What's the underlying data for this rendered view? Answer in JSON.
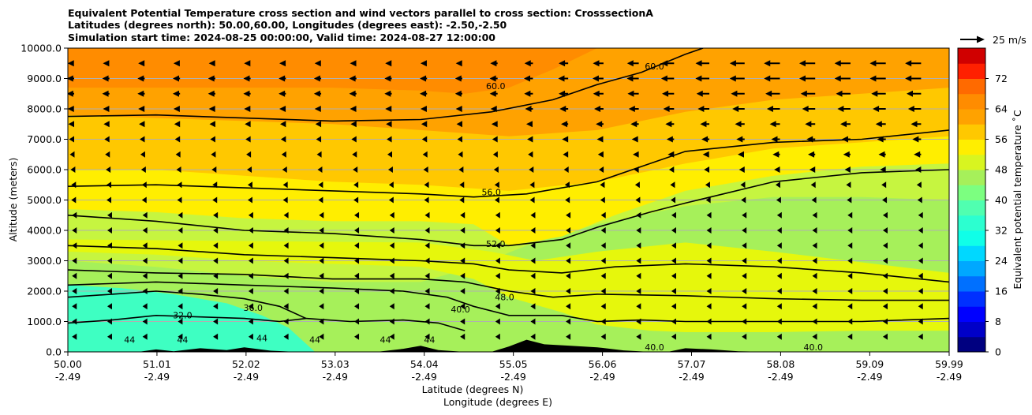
{
  "chart_data": {
    "type": "heatmap",
    "subtype": "cross-section contour with wind vectors",
    "title_lines": [
      "Equivalent Potential Temperature cross section and wind vectors parallel to cross section: CrosssectionA",
      "Latitudes (degrees north): 50.00,60.00, Longitudes (degrees east): -2.50,-2.50",
      "Simulation start time: 2024-08-25 00:00:00, Valid time: 2024-08-27 12:00:00"
    ],
    "xlabel_1": "Latitude (degrees N)",
    "xlabel_2": "Longitude (degrees E)",
    "ylabel": "Altitude (meters)",
    "x_range": [
      50.0,
      59.99
    ],
    "y_range": [
      0,
      10000
    ],
    "x_ticks": [
      {
        "lat": "50.00",
        "lon": "-2.49",
        "value": 50.0
      },
      {
        "lat": "51.01",
        "lon": "-2.49",
        "value": 51.01
      },
      {
        "lat": "52.02",
        "lon": "-2.49",
        "value": 52.02
      },
      {
        "lat": "53.03",
        "lon": "-2.49",
        "value": 53.03
      },
      {
        "lat": "54.04",
        "lon": "-2.49",
        "value": 54.04
      },
      {
        "lat": "55.05",
        "lon": "-2.49",
        "value": 55.05
      },
      {
        "lat": "56.06",
        "lon": "-2.49",
        "value": 56.06
      },
      {
        "lat": "57.07",
        "lon": "-2.49",
        "value": 57.07
      },
      {
        "lat": "58.08",
        "lon": "-2.49",
        "value": 58.08
      },
      {
        "lat": "59.09",
        "lon": "-2.49",
        "value": 59.09
      },
      {
        "lat": "59.99",
        "lon": "-2.49",
        "value": 59.99
      }
    ],
    "y_ticks": [
      {
        "label": "0.0",
        "value": 0
      },
      {
        "label": "1000.0",
        "value": 1000
      },
      {
        "label": "2000.0",
        "value": 2000
      },
      {
        "label": "3000.0",
        "value": 3000
      },
      {
        "label": "4000.0",
        "value": 4000
      },
      {
        "label": "5000.0",
        "value": 5000
      },
      {
        "label": "6000.0",
        "value": 6000
      },
      {
        "label": "7000.0",
        "value": 7000
      },
      {
        "label": "8000.0",
        "value": 8000
      },
      {
        "label": "9000.0",
        "value": 9000
      },
      {
        "label": "10000.0",
        "value": 10000
      }
    ],
    "grid": true,
    "colorbar": {
      "label": "Equivalent potential temperature ˚C",
      "range": [
        0,
        80
      ],
      "ticks": [
        "0",
        "8",
        "16",
        "24",
        "32",
        "40",
        "48",
        "56",
        "64",
        "72"
      ],
      "tick_values": [
        0,
        8,
        16,
        24,
        32,
        40,
        48,
        56,
        64,
        72
      ]
    },
    "wind_key": {
      "label": "25 m/s",
      "speed": 25
    },
    "fill_bands": [
      {
        "theta": 38,
        "color": "#a6f05a",
        "heights": [
          [
            50.0,
            1300
          ],
          [
            51.0,
            1200
          ],
          [
            52.0,
            1100
          ],
          [
            53.0,
            1050
          ],
          [
            54.0,
            1000
          ],
          [
            55.0,
            950
          ],
          [
            56.0,
            850
          ],
          [
            57.0,
            800
          ],
          [
            58.0,
            700
          ],
          [
            59.0,
            650
          ],
          [
            59.99,
            600
          ]
        ]
      },
      {
        "theta": 34,
        "color": "#3effc2",
        "heights": [
          [
            50.0,
            2200
          ],
          [
            50.6,
            2100
          ],
          [
            51.2,
            1900
          ],
          [
            51.8,
            1600
          ],
          [
            52.2,
            1200
          ],
          [
            52.5,
            800
          ],
          [
            52.8,
            0
          ]
        ]
      },
      {
        "theta": 45,
        "color": "#c6f540",
        "heights": [
          [
            50.0,
            3000
          ],
          [
            51.0,
            2800
          ],
          [
            52.0,
            2500
          ],
          [
            53.0,
            2300
          ],
          [
            54.0,
            2300
          ],
          [
            54.6,
            2800
          ],
          [
            55.2,
            3500
          ],
          [
            56.0,
            4200
          ],
          [
            57.0,
            4800
          ],
          [
            58.0,
            5100
          ],
          [
            59.0,
            5100
          ],
          [
            59.99,
            5000
          ]
        ]
      },
      {
        "theta": 48,
        "color": "#e6f70c",
        "heights": [
          [
            50.0,
            3300
          ],
          [
            51.0,
            3200
          ],
          [
            52.0,
            3000
          ],
          [
            53.0,
            2900
          ],
          [
            54.0,
            2800
          ],
          [
            54.6,
            2400
          ],
          [
            55.0,
            1800
          ],
          [
            55.6,
            1300
          ],
          [
            56.0,
            900
          ],
          [
            56.6,
            700
          ],
          [
            57.0,
            650
          ],
          [
            58.0,
            650
          ],
          [
            59.0,
            700
          ],
          [
            59.99,
            700
          ]
        ]
      },
      {
        "theta": 52,
        "color": "#ffee00",
        "heights": [
          [
            50.0,
            4700
          ],
          [
            51.0,
            4600
          ],
          [
            52.0,
            4400
          ],
          [
            53.0,
            4300
          ],
          [
            54.0,
            4300
          ],
          [
            54.6,
            4200
          ],
          [
            55.0,
            3500
          ],
          [
            55.6,
            3800
          ],
          [
            56.2,
            4500
          ],
          [
            57.0,
            5300
          ],
          [
            58.0,
            5800
          ],
          [
            59.0,
            6100
          ],
          [
            59.99,
            6200
          ]
        ]
      },
      {
        "theta": 55,
        "color": "#ffc800",
        "heights": [
          [
            50.0,
            6000
          ],
          [
            51.0,
            6000
          ],
          [
            52.0,
            5800
          ],
          [
            53.0,
            5600
          ],
          [
            54.0,
            5500
          ],
          [
            55.0,
            5300
          ],
          [
            56.0,
            5600
          ],
          [
            57.0,
            6200
          ],
          [
            58.0,
            6700
          ],
          [
            59.0,
            6900
          ],
          [
            59.99,
            7100
          ]
        ]
      },
      {
        "theta": 58,
        "color": "#ffa200",
        "heights": [
          [
            50.0,
            7800
          ],
          [
            51.0,
            7700
          ],
          [
            52.0,
            7600
          ],
          [
            53.0,
            7500
          ],
          [
            54.0,
            7300
          ],
          [
            55.0,
            7100
          ],
          [
            56.0,
            7300
          ],
          [
            57.0,
            7900
          ],
          [
            58.0,
            8300
          ],
          [
            59.0,
            8500
          ],
          [
            59.99,
            8700
          ]
        ]
      },
      {
        "theta": 62,
        "color": "#ff8c00",
        "heights": [
          [
            50.0,
            8700
          ],
          [
            51.0,
            8700
          ],
          [
            52.0,
            8700
          ],
          [
            53.0,
            8700
          ],
          [
            54.0,
            8600
          ],
          [
            54.5,
            8500
          ],
          [
            55.0,
            8700
          ],
          [
            55.5,
            9300
          ],
          [
            56.0,
            10000
          ]
        ]
      },
      {
        "theta": 66,
        "color": "#ff6a00",
        "heights": [
          [
            50.0,
            10000
          ],
          [
            51.0,
            10000
          ],
          [
            52.0,
            10000
          ],
          [
            53.0,
            10000
          ],
          [
            54.0,
            10000
          ],
          [
            55.0,
            10000
          ]
        ]
      }
    ],
    "contours": [
      {
        "level": 32.0,
        "label": "32.0",
        "points": [
          [
            50.0,
            950
          ],
          [
            50.5,
            1050
          ],
          [
            51.0,
            1200
          ],
          [
            51.5,
            1150
          ],
          [
            52.0,
            1100
          ],
          [
            52.4,
            1000
          ],
          [
            52.7,
            1100
          ]
        ]
      },
      {
        "level": 36.0,
        "label": "36.0",
        "points": [
          [
            50.0,
            1800
          ],
          [
            50.5,
            1900
          ],
          [
            51.0,
            2000
          ],
          [
            51.5,
            1900
          ],
          [
            52.0,
            1750
          ],
          [
            52.4,
            1500
          ],
          [
            52.7,
            1100
          ],
          [
            53.2,
            1000
          ],
          [
            53.8,
            1050
          ],
          [
            54.2,
            950
          ],
          [
            54.5,
            700
          ]
        ]
      },
      {
        "level": 40.0,
        "label": "40.0",
        "points": [
          [
            50.0,
            2200
          ],
          [
            51.0,
            2300
          ],
          [
            52.0,
            2200
          ],
          [
            53.0,
            2100
          ],
          [
            53.8,
            2000
          ],
          [
            54.3,
            1800
          ],
          [
            54.6,
            1500
          ],
          [
            55.0,
            1200
          ],
          [
            55.6,
            1200
          ],
          [
            56.0,
            1000
          ],
          [
            56.5,
            1050
          ],
          [
            57.0,
            1000
          ],
          [
            58.0,
            1000
          ],
          [
            59.0,
            1000
          ],
          [
            59.99,
            1100
          ]
        ]
      },
      {
        "level": 44.0,
        "label": "44.0",
        "points": [
          [
            50.0,
            2700
          ],
          [
            51.0,
            2600
          ],
          [
            52.0,
            2550
          ],
          [
            53.0,
            2400
          ],
          [
            54.0,
            2400
          ],
          [
            54.5,
            2300
          ],
          [
            55.0,
            2000
          ],
          [
            55.5,
            1800
          ],
          [
            56.0,
            1900
          ],
          [
            57.0,
            1850
          ],
          [
            58.0,
            1750
          ],
          [
            59.0,
            1700
          ],
          [
            59.99,
            1700
          ]
        ]
      },
      {
        "level": 48.0,
        "label": "48.0",
        "points": [
          [
            50.0,
            3500
          ],
          [
            51.0,
            3400
          ],
          [
            52.0,
            3200
          ],
          [
            53.0,
            3100
          ],
          [
            54.0,
            3000
          ],
          [
            54.6,
            2900
          ],
          [
            55.0,
            2700
          ],
          [
            55.6,
            2600
          ],
          [
            56.2,
            2800
          ],
          [
            57.0,
            2900
          ],
          [
            58.0,
            2800
          ],
          [
            59.0,
            2600
          ],
          [
            59.99,
            2300
          ]
        ]
      },
      {
        "level": 52.0,
        "label": "52.0",
        "points": [
          [
            50.0,
            4500
          ],
          [
            51.0,
            4300
          ],
          [
            52.0,
            4000
          ],
          [
            53.0,
            3900
          ],
          [
            54.0,
            3700
          ],
          [
            54.6,
            3500
          ],
          [
            55.0,
            3500
          ],
          [
            55.6,
            3700
          ],
          [
            56.0,
            4100
          ],
          [
            56.6,
            4600
          ],
          [
            57.0,
            4900
          ],
          [
            58.0,
            5600
          ],
          [
            59.0,
            5900
          ],
          [
            59.99,
            6000
          ]
        ]
      },
      {
        "level": 56.0,
        "label": "56.0",
        "points": [
          [
            50.0,
            5450
          ],
          [
            51.0,
            5500
          ],
          [
            52.0,
            5400
          ],
          [
            53.0,
            5300
          ],
          [
            54.0,
            5200
          ],
          [
            54.6,
            5100
          ],
          [
            55.2,
            5200
          ],
          [
            56.0,
            5600
          ],
          [
            56.6,
            6200
          ],
          [
            57.0,
            6600
          ],
          [
            58.0,
            6900
          ],
          [
            59.0,
            7000
          ],
          [
            59.99,
            7300
          ]
        ]
      },
      {
        "level": 60.0,
        "label": "60.0",
        "points": [
          [
            50.0,
            7750
          ],
          [
            51.0,
            7800
          ],
          [
            52.0,
            7700
          ],
          [
            53.0,
            7600
          ],
          [
            54.0,
            7650
          ],
          [
            54.8,
            7900
          ],
          [
            55.5,
            8300
          ],
          [
            56.0,
            8800
          ],
          [
            56.5,
            9200
          ],
          [
            57.0,
            9800
          ],
          [
            57.2,
            10000
          ]
        ]
      }
    ],
    "contour_labels": [
      {
        "text": "60.0",
        "x": 54.85,
        "y": 8650
      },
      {
        "text": "56.0",
        "x": 54.8,
        "y": 5150
      },
      {
        "text": "52.0",
        "x": 54.85,
        "y": 3450
      },
      {
        "text": "48.0",
        "x": 54.95,
        "y": 1700
      },
      {
        "text": "40.0",
        "x": 54.45,
        "y": 1300
      },
      {
        "text": "40.0",
        "x": 56.65,
        "y": 50
      },
      {
        "text": "40.0",
        "x": 58.45,
        "y": 50
      },
      {
        "text": "36.0",
        "x": 52.1,
        "y": 1350
      },
      {
        "text": "32.0",
        "x": 51.3,
        "y": 1100
      },
      {
        "text": "44",
        "x": 50.7,
        "y": 300
      },
      {
        "text": "44",
        "x": 51.3,
        "y": 300
      },
      {
        "text": "44",
        "x": 52.2,
        "y": 350
      },
      {
        "text": "44",
        "x": 52.8,
        "y": 300
      },
      {
        "text": "44",
        "x": 53.6,
        "y": 300
      },
      {
        "text": "44",
        "x": 54.1,
        "y": 300
      },
      {
        "text": "60.0",
        "x": 56.65,
        "y": 9300
      }
    ],
    "terrain": [
      [
        50.0,
        0
      ],
      [
        50.8,
        0
      ],
      [
        51.0,
        80
      ],
      [
        51.2,
        20
      ],
      [
        51.5,
        120
      ],
      [
        51.8,
        60
      ],
      [
        52.0,
        150
      ],
      [
        52.3,
        40
      ],
      [
        52.6,
        0
      ],
      [
        53.5,
        0
      ],
      [
        53.8,
        100
      ],
      [
        54.0,
        200
      ],
      [
        54.2,
        60
      ],
      [
        54.5,
        0
      ],
      [
        54.8,
        0
      ],
      [
        55.0,
        180
      ],
      [
        55.2,
        400
      ],
      [
        55.4,
        250
      ],
      [
        55.7,
        200
      ],
      [
        56.0,
        150
      ],
      [
        56.3,
        50
      ],
      [
        56.6,
        0
      ],
      [
        56.8,
        0
      ],
      [
        57.0,
        120
      ],
      [
        57.3,
        80
      ],
      [
        57.6,
        20
      ],
      [
        58.0,
        0
      ],
      [
        59.99,
        0
      ]
    ],
    "wind": {
      "x_positions": [
        50.0,
        50.4,
        50.8,
        51.2,
        51.6,
        52.0,
        52.4,
        52.8,
        53.2,
        53.6,
        54.0,
        54.4,
        54.8,
        55.2,
        55.6,
        56.0,
        56.4,
        56.8,
        57.2,
        57.6,
        58.0,
        58.4,
        58.8,
        59.2,
        59.6
      ],
      "levels": [
        9500,
        9000,
        8500,
        8000,
        7500,
        7000,
        6500,
        6000,
        5500,
        5000,
        4500,
        4000,
        3500,
        3000,
        2500,
        2000,
        1500,
        1000,
        500
      ],
      "u_by_level": [
        -9,
        -10,
        -10,
        -9,
        -8,
        -7,
        -6,
        -5,
        -4,
        -4,
        -3,
        -3,
        -3,
        -3,
        -3,
        -3,
        -3,
        -3,
        -3
      ],
      "u_east_extra": [
        -22,
        -22,
        -20,
        -18,
        -14,
        -12,
        -10,
        -8,
        -6,
        -5,
        -4,
        -4,
        -4,
        -4,
        -4,
        -4,
        -4,
        -4,
        -4
      ]
    }
  }
}
